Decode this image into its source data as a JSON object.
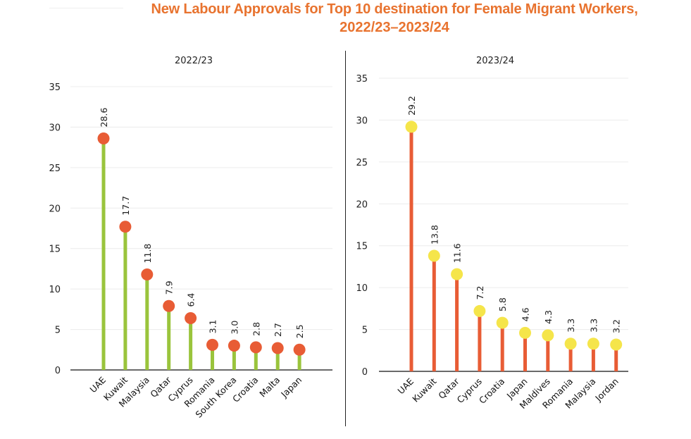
{
  "title": {
    "line1": "New Labour Approvals for Top 10 destination for Female Migrant Workers,",
    "line2": "2022/23–2023/24",
    "color": "#e8732f"
  },
  "chart_data": [
    {
      "type": "lollipop",
      "title": "2022/23",
      "xlabel": "",
      "ylabel": "",
      "ylim": [
        0,
        35
      ],
      "yticks": [
        0,
        5,
        10,
        15,
        20,
        25,
        30,
        35
      ],
      "grid": true,
      "categories": [
        "UAE",
        "Kuwait",
        "Malaysia",
        "Qatar",
        "Cyprus",
        "Romania",
        "South Korea",
        "Croatia",
        "Malta",
        "Japan"
      ],
      "values": [
        28.6,
        17.7,
        11.8,
        7.9,
        6.4,
        3.1,
        3.0,
        2.8,
        2.7,
        2.5
      ],
      "labels": [
        "28.6",
        "17.7",
        "11.8",
        "7.9",
        "6.4",
        "3.1",
        "3.0",
        "2.8",
        "2.7",
        "2.5"
      ],
      "stem_color": "#9ac43c",
      "dot_color": "#e85c35"
    },
    {
      "type": "lollipop",
      "title": "2023/24",
      "xlabel": "",
      "ylabel": "",
      "ylim": [
        0,
        35
      ],
      "yticks": [
        0,
        5,
        10,
        15,
        20,
        25,
        30,
        35
      ],
      "grid": true,
      "categories": [
        "UAE",
        "Kuwait",
        "Qatar",
        "Cyprus",
        "Croatia",
        "Japan",
        "Maldives",
        "Romania",
        "Malaysia",
        "Jordan"
      ],
      "values": [
        29.2,
        13.8,
        11.6,
        7.2,
        5.8,
        4.6,
        4.3,
        3.3,
        3.3,
        3.2
      ],
      "labels": [
        "29.2",
        "13.8",
        "11.6",
        "7.2",
        "5.8",
        "4.6",
        "4.3",
        "3.3",
        "3.3",
        "3.2"
      ],
      "stem_color": "#e85c35",
      "dot_color": "#f5e54a"
    }
  ]
}
